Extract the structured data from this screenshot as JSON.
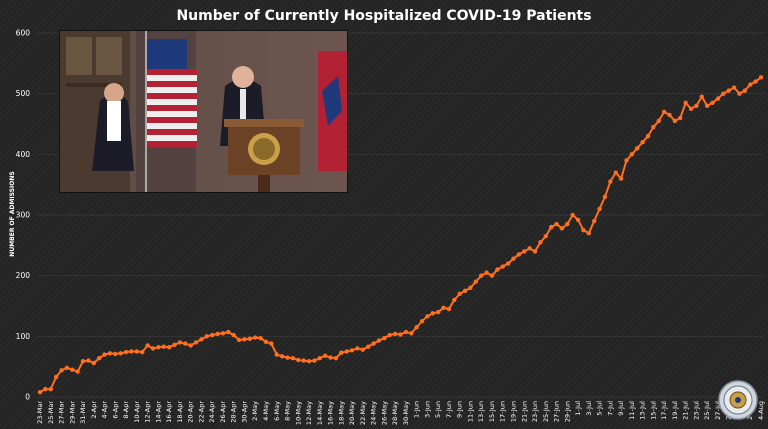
{
  "chart_data": {
    "type": "line",
    "title": "Number of Currently Hospitalized COVID-19 Patients",
    "xlabel": "",
    "ylabel": "NUMBER OF ADMISSIONS",
    "ylim": [
      0,
      600
    ],
    "yticks": [
      0,
      100,
      200,
      300,
      400,
      500,
      600
    ],
    "grid": true,
    "legend": "none",
    "line_color": "#FF6F1F",
    "x_tick_labels": [
      "23-Mar",
      "25-Mar",
      "27-Mar",
      "29-Mar",
      "31-Mar",
      "2-Apr",
      "4-Apr",
      "6-Apr",
      "8-Apr",
      "10-Apr",
      "12-Apr",
      "14-Apr",
      "16-Apr",
      "18-Apr",
      "20-Apr",
      "22-Apr",
      "24-Apr",
      "26-Apr",
      "28-Apr",
      "30-Apr",
      "2-May",
      "4-May",
      "6-May",
      "8-May",
      "10-May",
      "12-May",
      "14-May",
      "16-May",
      "18-May",
      "20-May",
      "22-May",
      "24-May",
      "26-May",
      "28-May",
      "30-May",
      "1-Jun",
      "3-Jun",
      "5-Jun",
      "7-Jun",
      "9-Jun",
      "11-Jun",
      "13-Jun",
      "15-Jun",
      "17-Jun",
      "19-Jun",
      "21-Jun",
      "23-Jun",
      "25-Jun",
      "27-Jun",
      "29-Jun",
      "1-Jul",
      "3-Jul",
      "5-Jul",
      "7-Jul",
      "9-Jul",
      "11-Jul",
      "13-Jul",
      "15-Jul",
      "17-Jul",
      "19-Jul",
      "21-Jul",
      "23-Jul",
      "25-Jul",
      "27-Jul",
      "29-Jul",
      "31-Jul",
      "2-Aug",
      "4-Aug"
    ],
    "values": [
      8,
      13,
      13,
      33,
      44,
      48,
      45,
      42,
      59,
      60,
      56,
      64,
      70,
      72,
      71,
      72,
      74,
      75,
      75,
      74,
      85,
      80,
      82,
      83,
      82,
      86,
      90,
      88,
      85,
      90,
      95,
      100,
      102,
      104,
      105,
      107,
      102,
      94,
      95,
      96,
      98,
      97,
      91,
      88,
      70,
      67,
      65,
      64,
      61,
      60,
      59,
      60,
      64,
      68,
      65,
      64,
      73,
      75,
      77,
      80,
      78,
      83,
      88,
      93,
      97,
      102,
      104,
      103,
      107,
      105,
      115,
      125,
      133,
      138,
      140,
      147,
      145,
      160,
      170,
      175,
      180,
      190,
      200,
      205,
      200,
      210,
      215,
      220,
      228,
      235,
      240,
      245,
      240,
      255,
      265,
      280,
      285,
      278,
      285,
      300,
      292,
      275,
      270,
      290,
      310,
      330,
      355,
      370,
      360,
      390,
      400,
      410,
      420,
      430,
      445,
      455,
      470,
      465,
      455,
      460,
      485,
      475,
      480,
      495,
      480,
      485,
      492,
      500,
      505,
      510,
      500,
      505,
      515,
      520,
      527
    ]
  },
  "inset_image": {
    "description_icon": "press-briefing-photo"
  },
  "seal_icon": "state-seal-icon"
}
